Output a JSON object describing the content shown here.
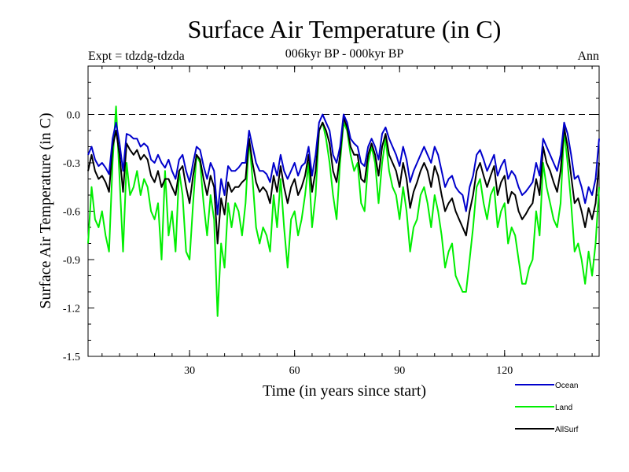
{
  "chart_data": {
    "type": "line",
    "title": "Surface Air Temperature (in C)",
    "subtitle": "006kyr BP - 000kyr BP",
    "left_note": "Expt = tdzdg-tdzda",
    "right_note": "Ann",
    "xlabel": "Time (in years since start)",
    "ylabel": "Surface Air Temperature (in C)",
    "xlim": [
      1,
      147
    ],
    "ylim": [
      -1.5,
      0.3
    ],
    "xticks": [
      30,
      60,
      90,
      120
    ],
    "xtick_labels": [
      "30",
      "60",
      "90",
      "120"
    ],
    "yticks": [
      -1.5,
      -1.2,
      -0.9,
      -0.6,
      -0.3,
      0.0
    ],
    "ytick_labels": [
      "-1.5",
      "-1.2",
      "-0.9",
      "-0.6",
      "-0.3",
      "0.0"
    ],
    "reference_line": 0.0,
    "legend_position": "bottom-right",
    "x_start": 1,
    "series": [
      {
        "name": "Ocean",
        "color": "#0000cc",
        "values": [
          -0.25,
          -0.2,
          -0.28,
          -0.32,
          -0.3,
          -0.33,
          -0.37,
          -0.15,
          -0.05,
          -0.18,
          -0.35,
          -0.12,
          -0.13,
          -0.15,
          -0.15,
          -0.2,
          -0.18,
          -0.2,
          -0.28,
          -0.3,
          -0.25,
          -0.3,
          -0.33,
          -0.28,
          -0.35,
          -0.4,
          -0.28,
          -0.25,
          -0.35,
          -0.42,
          -0.3,
          -0.2,
          -0.22,
          -0.32,
          -0.4,
          -0.3,
          -0.35,
          -0.62,
          -0.4,
          -0.5,
          -0.32,
          -0.35,
          -0.35,
          -0.33,
          -0.3,
          -0.3,
          -0.1,
          -0.2,
          -0.3,
          -0.35,
          -0.35,
          -0.37,
          -0.42,
          -0.3,
          -0.38,
          -0.25,
          -0.35,
          -0.4,
          -0.35,
          -0.3,
          -0.38,
          -0.32,
          -0.3,
          -0.2,
          -0.38,
          -0.25,
          -0.05,
          0.0,
          -0.05,
          -0.1,
          -0.25,
          -0.3,
          -0.2,
          0.0,
          -0.05,
          -0.15,
          -0.18,
          -0.2,
          -0.3,
          -0.32,
          -0.2,
          -0.15,
          -0.2,
          -0.28,
          -0.12,
          -0.08,
          -0.15,
          -0.2,
          -0.25,
          -0.32,
          -0.2,
          -0.28,
          -0.42,
          -0.35,
          -0.3,
          -0.25,
          -0.2,
          -0.25,
          -0.3,
          -0.2,
          -0.25,
          -0.35,
          -0.45,
          -0.4,
          -0.38,
          -0.45,
          -0.48,
          -0.5,
          -0.6,
          -0.45,
          -0.38,
          -0.25,
          -0.22,
          -0.28,
          -0.35,
          -0.3,
          -0.25,
          -0.38,
          -0.32,
          -0.28,
          -0.4,
          -0.35,
          -0.38,
          -0.45,
          -0.5,
          -0.48,
          -0.45,
          -0.42,
          -0.3,
          -0.38,
          -0.15,
          -0.2,
          -0.25,
          -0.3,
          -0.35,
          -0.25,
          -0.05,
          -0.12,
          -0.25,
          -0.4,
          -0.38,
          -0.45,
          -0.55,
          -0.45,
          -0.5,
          -0.4,
          -0.15
        ]
      },
      {
        "name": "Land",
        "color": "#00ee00",
        "values": [
          -0.8,
          -0.45,
          -0.65,
          -0.7,
          -0.6,
          -0.75,
          -0.85,
          -0.3,
          0.05,
          -0.4,
          -0.85,
          -0.3,
          -0.5,
          -0.45,
          -0.35,
          -0.5,
          -0.4,
          -0.45,
          -0.6,
          -0.65,
          -0.55,
          -0.9,
          -0.35,
          -0.75,
          -0.6,
          -0.85,
          -0.35,
          -0.5,
          -0.85,
          -0.9,
          -0.55,
          -0.25,
          -0.3,
          -0.55,
          -0.75,
          -0.5,
          -0.65,
          -1.25,
          -0.8,
          -0.95,
          -0.55,
          -0.7,
          -0.55,
          -0.6,
          -0.75,
          -0.55,
          -0.15,
          -0.4,
          -0.7,
          -0.8,
          -0.7,
          -0.75,
          -0.85,
          -0.5,
          -0.7,
          -0.4,
          -0.7,
          -0.95,
          -0.65,
          -0.6,
          -0.75,
          -0.65,
          -0.5,
          -0.3,
          -0.7,
          -0.5,
          -0.1,
          -0.05,
          -0.15,
          -0.3,
          -0.5,
          -0.65,
          -0.3,
          -0.05,
          -0.1,
          -0.25,
          -0.35,
          -0.3,
          -0.55,
          -0.6,
          -0.3,
          -0.2,
          -0.3,
          -0.55,
          -0.3,
          -0.15,
          -0.35,
          -0.45,
          -0.5,
          -0.65,
          -0.45,
          -0.6,
          -0.85,
          -0.7,
          -0.65,
          -0.5,
          -0.45,
          -0.55,
          -0.7,
          -0.5,
          -0.6,
          -0.75,
          -0.95,
          -0.85,
          -0.8,
          -1.0,
          -1.05,
          -1.1,
          -1.1,
          -0.9,
          -0.7,
          -0.45,
          -0.4,
          -0.55,
          -0.65,
          -0.5,
          -0.45,
          -0.7,
          -0.6,
          -0.55,
          -0.8,
          -0.7,
          -0.75,
          -0.9,
          -1.05,
          -1.05,
          -0.95,
          -0.9,
          -0.6,
          -0.75,
          -0.3,
          -0.45,
          -0.55,
          -0.65,
          -0.7,
          -0.55,
          -0.1,
          -0.3,
          -0.55,
          -0.85,
          -0.8,
          -0.9,
          -1.05,
          -0.85,
          -1.0,
          -0.8,
          -0.45
        ]
      },
      {
        "name": "AllSurf",
        "color": "#000000",
        "values": [
          -0.35,
          -0.25,
          -0.35,
          -0.4,
          -0.38,
          -0.42,
          -0.48,
          -0.2,
          -0.1,
          -0.25,
          -0.48,
          -0.18,
          -0.22,
          -0.25,
          -0.22,
          -0.28,
          -0.25,
          -0.28,
          -0.38,
          -0.42,
          -0.35,
          -0.45,
          -0.4,
          -0.4,
          -0.45,
          -0.5,
          -0.35,
          -0.32,
          -0.45,
          -0.55,
          -0.38,
          -0.25,
          -0.28,
          -0.4,
          -0.5,
          -0.38,
          -0.45,
          -0.8,
          -0.52,
          -0.62,
          -0.42,
          -0.48,
          -0.45,
          -0.45,
          -0.42,
          -0.4,
          -0.15,
          -0.3,
          -0.42,
          -0.48,
          -0.45,
          -0.48,
          -0.55,
          -0.38,
          -0.48,
          -0.32,
          -0.45,
          -0.55,
          -0.45,
          -0.4,
          -0.5,
          -0.45,
          -0.38,
          -0.25,
          -0.48,
          -0.35,
          -0.1,
          -0.05,
          -0.1,
          -0.18,
          -0.35,
          -0.42,
          -0.25,
          -0.02,
          -0.08,
          -0.2,
          -0.25,
          -0.25,
          -0.4,
          -0.42,
          -0.25,
          -0.18,
          -0.25,
          -0.38,
          -0.2,
          -0.12,
          -0.25,
          -0.3,
          -0.35,
          -0.45,
          -0.3,
          -0.4,
          -0.58,
          -0.48,
          -0.42,
          -0.35,
          -0.3,
          -0.35,
          -0.45,
          -0.32,
          -0.38,
          -0.5,
          -0.6,
          -0.55,
          -0.52,
          -0.6,
          -0.65,
          -0.7,
          -0.75,
          -0.6,
          -0.5,
          -0.35,
          -0.3,
          -0.38,
          -0.45,
          -0.38,
          -0.32,
          -0.5,
          -0.42,
          -0.38,
          -0.55,
          -0.48,
          -0.5,
          -0.6,
          -0.65,
          -0.62,
          -0.58,
          -0.55,
          -0.4,
          -0.5,
          -0.2,
          -0.3,
          -0.35,
          -0.42,
          -0.48,
          -0.35,
          -0.08,
          -0.2,
          -0.38,
          -0.55,
          -0.52,
          -0.6,
          -0.7,
          -0.58,
          -0.65,
          -0.55,
          -0.3
        ]
      }
    ]
  }
}
